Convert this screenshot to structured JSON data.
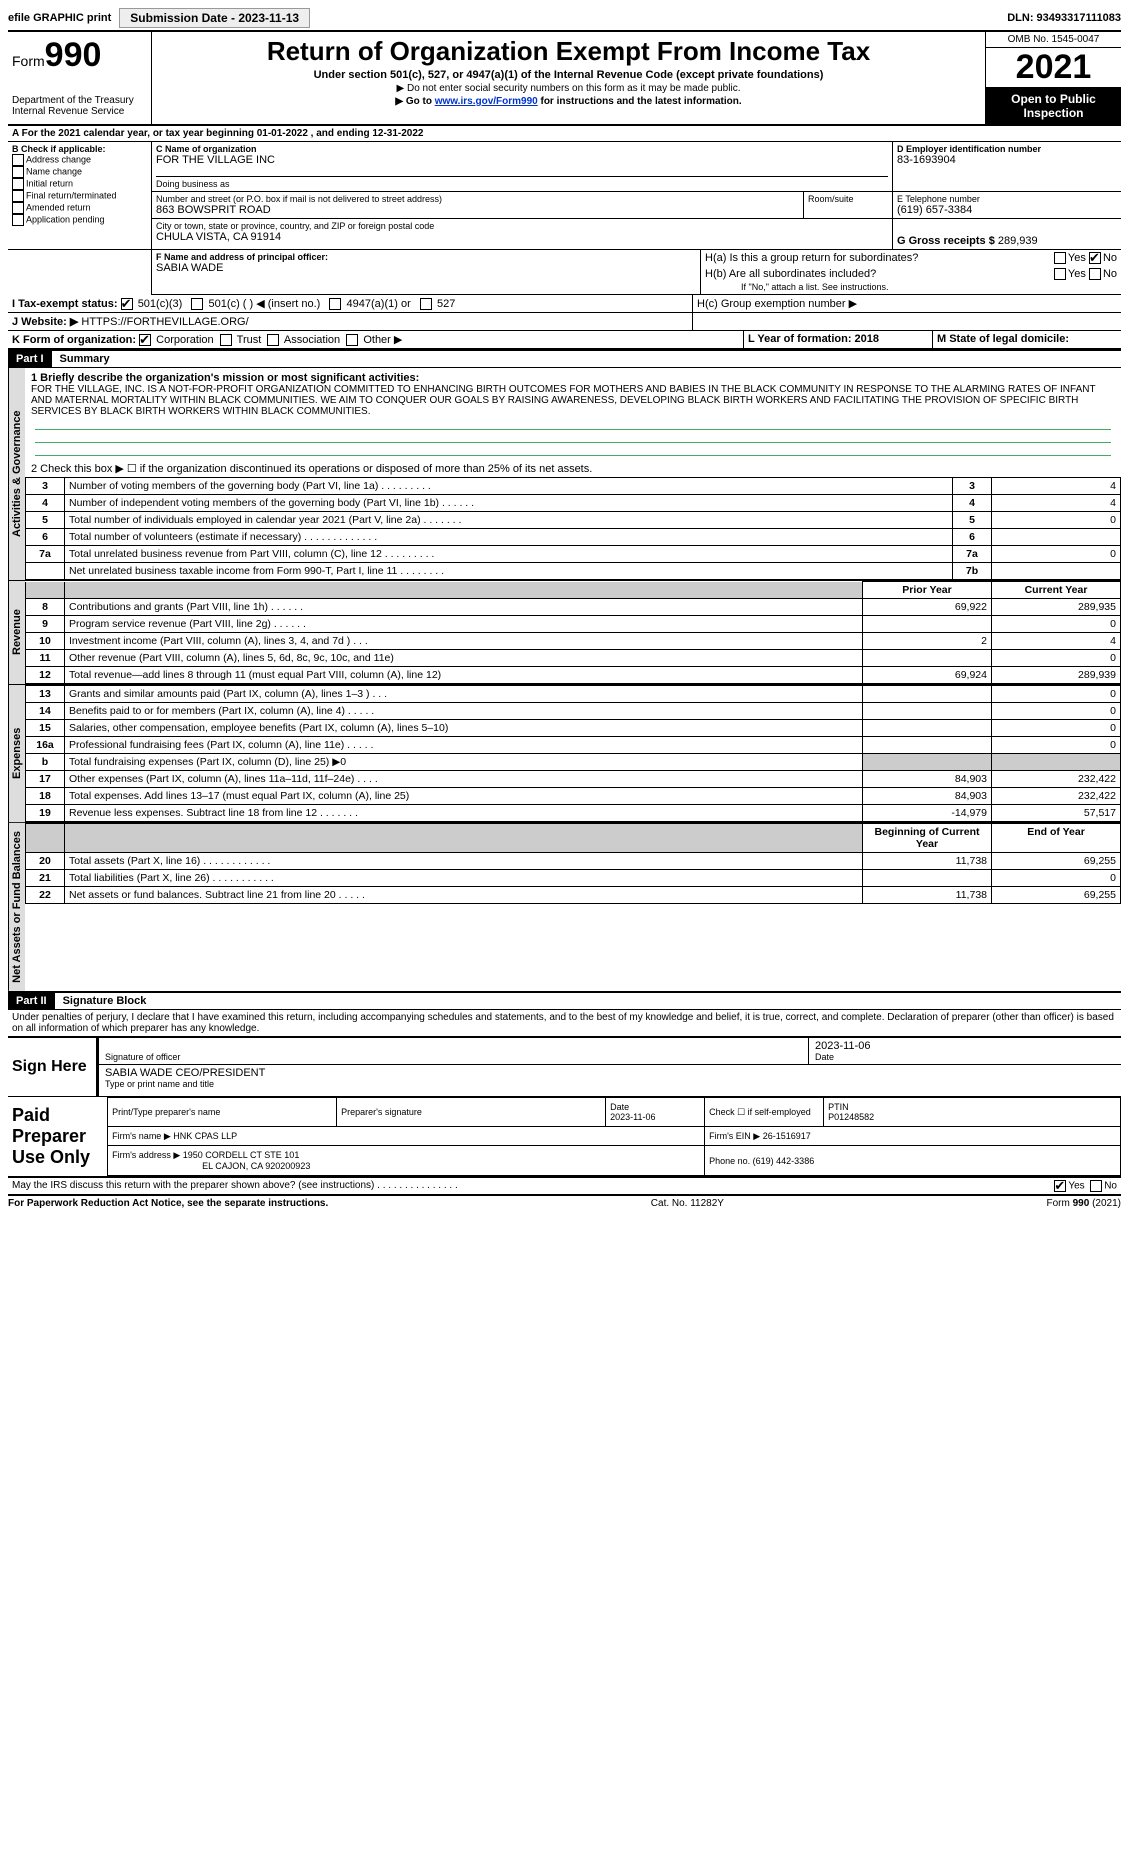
{
  "topbar": {
    "efile": "efile GRAPHIC print",
    "submission_label": "Submission Date - 2023-11-13",
    "dln_label": "DLN: 93493317111083"
  },
  "header": {
    "form_prefix": "Form",
    "form_number": "990",
    "dept": "Department of the Treasury",
    "irs": "Internal Revenue Service",
    "title": "Return of Organization Exempt From Income Tax",
    "subtitle": "Under section 501(c), 527, or 4947(a)(1) of the Internal Revenue Code (except private foundations)",
    "note1": "▶ Do not enter social security numbers on this form as it may be made public.",
    "note2_pre": "▶ Go to ",
    "note2_link": "www.irs.gov/Form990",
    "note2_post": " for instructions and the latest information.",
    "omb": "OMB No. 1545-0047",
    "year": "2021",
    "open": "Open to Public Inspection"
  },
  "period": {
    "line": "For the 2021 calendar year, or tax year beginning 01-01-2022   , and ending 12-31-2022"
  },
  "block_b": {
    "title": "B Check if applicable:",
    "items": [
      "Address change",
      "Name change",
      "Initial return",
      "Final return/terminated",
      "Amended return",
      "Application pending"
    ]
  },
  "block_c": {
    "name_label": "C Name of organization",
    "name": "FOR THE VILLAGE INC",
    "dba_label": "Doing business as",
    "addr_label": "Number and street (or P.O. box if mail is not delivered to street address)",
    "addr": "863 BOWSPRIT ROAD",
    "room_label": "Room/suite",
    "city_label": "City or town, state or province, country, and ZIP or foreign postal code",
    "city": "CHULA VISTA, CA  91914"
  },
  "block_d": {
    "label": "D Employer identification number",
    "value": "83-1693904"
  },
  "block_e": {
    "label": "E Telephone number",
    "value": "(619) 657-3384"
  },
  "block_g": {
    "label": "G Gross receipts $",
    "value": "289,939"
  },
  "block_f": {
    "label": "F Name and address of principal officer:",
    "value": "SABIA WADE"
  },
  "block_h": {
    "ha": "H(a)  Is this a group return for subordinates?",
    "hb": "H(b)  Are all subordinates included?",
    "hb_note": "If \"No,\" attach a list. See instructions.",
    "hc": "H(c)  Group exemption number ▶",
    "yes": "Yes",
    "no": "No"
  },
  "block_i": {
    "label": "I   Tax-exempt status:",
    "opts": [
      "501(c)(3)",
      "501(c) (  ) ◀ (insert no.)",
      "4947(a)(1) or",
      "527"
    ]
  },
  "block_j": {
    "label": "J   Website: ▶",
    "value": "HTTPS://FORTHEVILLAGE.ORG/"
  },
  "block_k": {
    "label": "K Form of organization:",
    "opts": [
      "Corporation",
      "Trust",
      "Association",
      "Other ▶"
    ]
  },
  "block_l": {
    "label": "L Year of formation: 2018"
  },
  "block_m": {
    "label": "M State of legal domicile:"
  },
  "part1": {
    "label": "Part I",
    "title": "Summary"
  },
  "summary": {
    "q1_label": "1  Briefly describe the organization's mission or most significant activities:",
    "q1_text": "FOR THE VILLAGE, INC. IS A NOT-FOR-PROFIT ORGANIZATION COMMITTED TO ENHANCING BIRTH OUTCOMES FOR MOTHERS AND BABIES IN THE BLACK COMMUNITY IN RESPONSE TO THE ALARMING RATES OF INFANT AND MATERNAL MORTALITY WITHIN BLACK COMMUNITIES. WE AIM TO CONQUER OUR GOALS BY RAISING AWARENESS, DEVELOPING BLACK BIRTH WORKERS AND FACILITATING THE PROVISION OF SPECIFIC BIRTH SERVICES BY BLACK BIRTH WORKERS WITHIN BLACK COMMUNITIES.",
    "q2": "2   Check this box ▶ ☐  if the organization discontinued its operations or disposed of more than 25% of its net assets.",
    "rows_gov": [
      {
        "n": "3",
        "label": "Number of voting members of the governing body (Part VI, line 1a)   .    .    .    .    .    .    .    .    .",
        "box": "3",
        "val": "4"
      },
      {
        "n": "4",
        "label": "Number of independent voting members of the governing body (Part VI, line 1b)   .    .    .    .    .    .",
        "box": "4",
        "val": "4"
      },
      {
        "n": "5",
        "label": "Total number of individuals employed in calendar year 2021 (Part V, line 2a)   .    .    .    .    .    .    .",
        "box": "5",
        "val": "0"
      },
      {
        "n": "6",
        "label": "Total number of volunteers (estimate if necessary)   .    .    .    .    .    .    .    .    .    .    .    .    .",
        "box": "6",
        "val": ""
      },
      {
        "n": "7a",
        "label": "Total unrelated business revenue from Part VIII, column (C), line 12   .    .    .    .    .    .    .    .    .",
        "box": "7a",
        "val": "0"
      },
      {
        "n": "",
        "label": "Net unrelated business taxable income from Form 990-T, Part I, line 11   .    .    .    .    .    .    .    .",
        "box": "7b",
        "val": ""
      }
    ],
    "col_prior": "Prior Year",
    "col_current": "Current Year",
    "rows_rev": [
      {
        "n": "8",
        "label": "Contributions and grants (Part VIII, line 1h)   .    .    .    .    .    .",
        "p": "69,922",
        "c": "289,935"
      },
      {
        "n": "9",
        "label": "Program service revenue (Part VIII, line 2g)   .    .    .    .    .    .",
        "p": "",
        "c": "0"
      },
      {
        "n": "10",
        "label": "Investment income (Part VIII, column (A), lines 3, 4, and 7d )   .    .    .",
        "p": "2",
        "c": "4"
      },
      {
        "n": "11",
        "label": "Other revenue (Part VIII, column (A), lines 5, 6d, 8c, 9c, 10c, and 11e)",
        "p": "",
        "c": "0"
      },
      {
        "n": "12",
        "label": "Total revenue—add lines 8 through 11 (must equal Part VIII, column (A), line 12)",
        "p": "69,924",
        "c": "289,939"
      }
    ],
    "rows_exp": [
      {
        "n": "13",
        "label": "Grants and similar amounts paid (Part IX, column (A), lines 1–3 )   .    .    .",
        "p": "",
        "c": "0"
      },
      {
        "n": "14",
        "label": "Benefits paid to or for members (Part IX, column (A), line 4)   .    .    .    .    .",
        "p": "",
        "c": "0"
      },
      {
        "n": "15",
        "label": "Salaries, other compensation, employee benefits (Part IX, column (A), lines 5–10)",
        "p": "",
        "c": "0"
      },
      {
        "n": "16a",
        "label": "Professional fundraising fees (Part IX, column (A), line 11e)   .    .    .    .    .",
        "p": "",
        "c": "0"
      },
      {
        "n": "b",
        "label": "Total fundraising expenses (Part IX, column (D), line 25) ▶0",
        "p": "shade",
        "c": "shade"
      },
      {
        "n": "17",
        "label": "Other expenses (Part IX, column (A), lines 11a–11d, 11f–24e)   .    .    .    .",
        "p": "84,903",
        "c": "232,422"
      },
      {
        "n": "18",
        "label": "Total expenses. Add lines 13–17 (must equal Part IX, column (A), line 25)",
        "p": "84,903",
        "c": "232,422"
      },
      {
        "n": "19",
        "label": "Revenue less expenses. Subtract line 18 from line 12   .    .    .    .    .    .    .",
        "p": "-14,979",
        "c": "57,517"
      }
    ],
    "col_begin": "Beginning of Current Year",
    "col_end": "End of Year",
    "rows_net": [
      {
        "n": "20",
        "label": "Total assets (Part X, line 16)   .    .    .    .    .    .    .    .    .    .    .    .",
        "p": "11,738",
        "c": "69,255"
      },
      {
        "n": "21",
        "label": "Total liabilities (Part X, line 26)   .    .    .    .    .    .    .    .    .    .    .",
        "p": "",
        "c": "0"
      },
      {
        "n": "22",
        "label": "Net assets or fund balances. Subtract line 21 from line 20   .    .    .    .    .",
        "p": "11,738",
        "c": "69,255"
      }
    ],
    "tabs": {
      "gov": "Activities & Governance",
      "rev": "Revenue",
      "exp": "Expenses",
      "net": "Net Assets or Fund Balances"
    }
  },
  "part2": {
    "label": "Part II",
    "title": "Signature Block",
    "decl": "Under penalties of perjury, I declare that I have examined this return, including accompanying schedules and statements, and to the best of my knowledge and belief, it is true, correct, and complete. Declaration of preparer (other than officer) is based on all information of which preparer has any knowledge."
  },
  "sign": {
    "here": "Sign Here",
    "sig_label": "Signature of officer",
    "date": "2023-11-06",
    "date_label": "Date",
    "name": "SABIA WADE CEO/PRESIDENT",
    "name_label": "Type or print name and title"
  },
  "prep": {
    "title": "Paid Preparer Use Only",
    "h1": "Print/Type preparer's name",
    "h2": "Preparer's signature",
    "h3": "Date",
    "h3v": "2023-11-06",
    "h4": "Check ☐ if self-employed",
    "h5": "PTIN",
    "h5v": "P01248582",
    "firm_label": "Firm's name    ▶",
    "firm": "HNK CPAS LLP",
    "ein_label": "Firm's EIN ▶",
    "ein": "26-1516917",
    "addr_label": "Firm's address ▶",
    "addr1": "1950 CORDELL CT STE 101",
    "addr2": "EL CAJON, CA  920200923",
    "phone_label": "Phone no.",
    "phone": "(619) 442-3386"
  },
  "may_irs": {
    "text": "May the IRS discuss this return with the preparer shown above? (see instructions)   .    .    .    .    .    .    .    .    .    .    .    .    .    .    .",
    "yes": "Yes",
    "no": "No"
  },
  "footer": {
    "left": "For Paperwork Reduction Act Notice, see the separate instructions.",
    "mid": "Cat. No. 11282Y",
    "right": "Form 990 (2021)"
  }
}
